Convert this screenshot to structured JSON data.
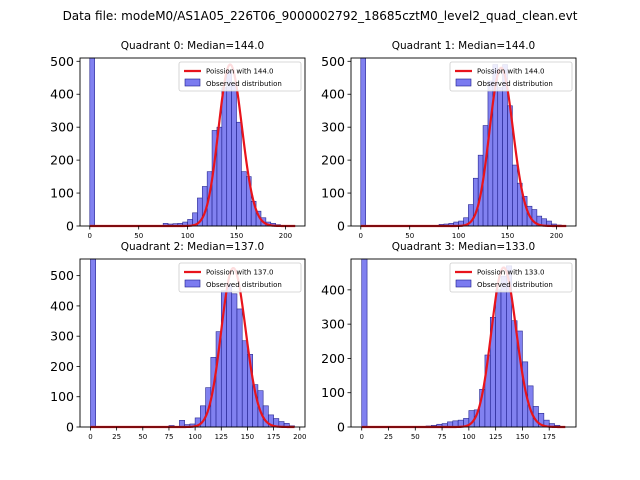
{
  "suptitle": "Data file: modeM0/AS1A05_226T06_9000002792_18685cztM0_level2_quad_clean.evt",
  "colors": {
    "bar_fill": "#7b7bf0",
    "bar_edge": "#1c1c8a",
    "poisson_line": "#e8141c"
  },
  "chart_data": [
    {
      "type": "bar",
      "title": "Quadrant 0: Median=144.0",
      "xlim": [
        -10,
        220
      ],
      "ylim": [
        0,
        510
      ],
      "xticks": [
        0,
        50,
        100,
        150,
        200
      ],
      "yticks": [
        0,
        100,
        200,
        300,
        400,
        500
      ],
      "bin_width": 5,
      "bins": [
        {
          "x": 0,
          "y": 510
        },
        {
          "x": 75,
          "y": 8
        },
        {
          "x": 80,
          "y": 6
        },
        {
          "x": 85,
          "y": 7
        },
        {
          "x": 90,
          "y": 8
        },
        {
          "x": 95,
          "y": 12
        },
        {
          "x": 100,
          "y": 20
        },
        {
          "x": 105,
          "y": 40
        },
        {
          "x": 110,
          "y": 85
        },
        {
          "x": 115,
          "y": 120
        },
        {
          "x": 120,
          "y": 165
        },
        {
          "x": 125,
          "y": 290
        },
        {
          "x": 130,
          "y": 300
        },
        {
          "x": 135,
          "y": 420
        },
        {
          "x": 140,
          "y": 470
        },
        {
          "x": 145,
          "y": 430
        },
        {
          "x": 150,
          "y": 315
        },
        {
          "x": 155,
          "y": 165
        },
        {
          "x": 160,
          "y": 150
        },
        {
          "x": 165,
          "y": 75
        },
        {
          "x": 170,
          "y": 45
        },
        {
          "x": 175,
          "y": 25
        },
        {
          "x": 180,
          "y": 12
        },
        {
          "x": 185,
          "y": 8
        },
        {
          "x": 190,
          "y": 4
        },
        {
          "x": 195,
          "y": 2
        }
      ],
      "poisson": {
        "lambda": 144.0,
        "peak": 490,
        "x_range": [
          0,
          210
        ]
      },
      "legend": {
        "line_label": "Poission with 144.0",
        "bar_label": "Observed distribution",
        "loc": "upper right"
      }
    },
    {
      "type": "bar",
      "title": "Quadrant 1: Median=144.0",
      "xlim": [
        -10,
        220
      ],
      "ylim": [
        0,
        510
      ],
      "xticks": [
        0,
        50,
        100,
        150,
        200
      ],
      "yticks": [
        0,
        100,
        200,
        300,
        400,
        500
      ],
      "bin_width": 5,
      "bins": [
        {
          "x": 0,
          "y": 510
        },
        {
          "x": 80,
          "y": 5
        },
        {
          "x": 85,
          "y": 6
        },
        {
          "x": 90,
          "y": 8
        },
        {
          "x": 95,
          "y": 12
        },
        {
          "x": 100,
          "y": 15
        },
        {
          "x": 105,
          "y": 25
        },
        {
          "x": 110,
          "y": 65
        },
        {
          "x": 115,
          "y": 145
        },
        {
          "x": 120,
          "y": 215
        },
        {
          "x": 125,
          "y": 305
        },
        {
          "x": 130,
          "y": 440
        },
        {
          "x": 135,
          "y": 490
        },
        {
          "x": 140,
          "y": 420
        },
        {
          "x": 145,
          "y": 490
        },
        {
          "x": 150,
          "y": 365
        },
        {
          "x": 155,
          "y": 185
        },
        {
          "x": 160,
          "y": 130
        },
        {
          "x": 165,
          "y": 90
        },
        {
          "x": 170,
          "y": 60
        },
        {
          "x": 175,
          "y": 50
        },
        {
          "x": 180,
          "y": 30
        },
        {
          "x": 185,
          "y": 22
        },
        {
          "x": 190,
          "y": 15
        },
        {
          "x": 195,
          "y": 6
        },
        {
          "x": 200,
          "y": 3
        }
      ],
      "poisson": {
        "lambda": 144.0,
        "peak": 480,
        "x_range": [
          0,
          210
        ]
      },
      "legend": {
        "line_label": "Poission with 144.0",
        "bar_label": "Observed distribution",
        "loc": "upper right"
      }
    },
    {
      "type": "bar",
      "title": "Quadrant 2: Median=137.0",
      "xlim": [
        -10,
        205
      ],
      "ylim": [
        0,
        555
      ],
      "xticks": [
        0,
        25,
        50,
        75,
        100,
        125,
        150,
        175,
        200
      ],
      "yticks": [
        0,
        100,
        200,
        300,
        400,
        500
      ],
      "bin_width": 5,
      "bins": [
        {
          "x": 0,
          "y": 555
        },
        {
          "x": 75,
          "y": 5
        },
        {
          "x": 85,
          "y": 22
        },
        {
          "x": 90,
          "y": 8
        },
        {
          "x": 95,
          "y": 10
        },
        {
          "x": 100,
          "y": 30
        },
        {
          "x": 105,
          "y": 70
        },
        {
          "x": 110,
          "y": 130
        },
        {
          "x": 115,
          "y": 230
        },
        {
          "x": 120,
          "y": 315
        },
        {
          "x": 125,
          "y": 450
        },
        {
          "x": 130,
          "y": 470
        },
        {
          "x": 135,
          "y": 440
        },
        {
          "x": 140,
          "y": 390
        },
        {
          "x": 145,
          "y": 285
        },
        {
          "x": 150,
          "y": 240
        },
        {
          "x": 155,
          "y": 140
        },
        {
          "x": 160,
          "y": 120
        },
        {
          "x": 165,
          "y": 70
        },
        {
          "x": 170,
          "y": 40
        },
        {
          "x": 175,
          "y": 28
        },
        {
          "x": 180,
          "y": 18
        },
        {
          "x": 185,
          "y": 12
        },
        {
          "x": 190,
          "y": 4
        }
      ],
      "poisson": {
        "lambda": 137.0,
        "peak": 525,
        "x_range": [
          0,
          195
        ]
      },
      "legend": {
        "line_label": "Poission with 137.0",
        "bar_label": "Observed distribution",
        "loc": "upper right"
      }
    },
    {
      "type": "bar",
      "title": "Quadrant 3: Median=133.0",
      "xlim": [
        -10,
        200
      ],
      "ylim": [
        0,
        490
      ],
      "xticks": [
        0,
        25,
        50,
        75,
        100,
        125,
        150,
        175
      ],
      "yticks": [
        0,
        100,
        200,
        300,
        400
      ],
      "bin_width": 5,
      "bins": [
        {
          "x": 0,
          "y": 490
        },
        {
          "x": 60,
          "y": 3
        },
        {
          "x": 65,
          "y": 5
        },
        {
          "x": 70,
          "y": 8
        },
        {
          "x": 75,
          "y": 10
        },
        {
          "x": 80,
          "y": 15
        },
        {
          "x": 85,
          "y": 18
        },
        {
          "x": 90,
          "y": 20
        },
        {
          "x": 95,
          "y": 25
        },
        {
          "x": 100,
          "y": 48
        },
        {
          "x": 105,
          "y": 50
        },
        {
          "x": 110,
          "y": 110
        },
        {
          "x": 115,
          "y": 210
        },
        {
          "x": 120,
          "y": 320
        },
        {
          "x": 125,
          "y": 400
        },
        {
          "x": 130,
          "y": 440
        },
        {
          "x": 135,
          "y": 470
        },
        {
          "x": 140,
          "y": 310
        },
        {
          "x": 145,
          "y": 280
        },
        {
          "x": 150,
          "y": 190
        },
        {
          "x": 155,
          "y": 120
        },
        {
          "x": 160,
          "y": 60
        },
        {
          "x": 165,
          "y": 40
        },
        {
          "x": 170,
          "y": 20
        },
        {
          "x": 175,
          "y": 10
        },
        {
          "x": 180,
          "y": 5
        }
      ],
      "poisson": {
        "lambda": 133.0,
        "peak": 465,
        "x_range": [
          0,
          190
        ]
      },
      "legend": {
        "line_label": "Poission with 133.0",
        "bar_label": "Observed distribution",
        "loc": "upper right"
      }
    }
  ]
}
